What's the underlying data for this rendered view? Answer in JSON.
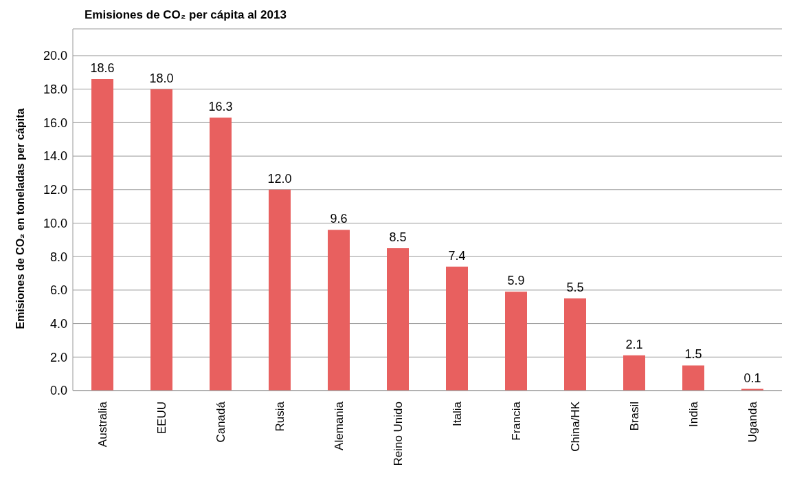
{
  "chart_data": {
    "type": "bar",
    "title": "Emisiones de CO₂ per cápita al 2013",
    "ylabel": "Emisiones de CO₂ en toneladas per cápita",
    "categories": [
      "Australia",
      "EEUU",
      "Canadá",
      "Rusia",
      "Alemania",
      "Reino Unido",
      "Italia",
      "Francia",
      "China/HK",
      "Brasil",
      "India",
      "Uganda"
    ],
    "values": [
      18.6,
      18.0,
      16.3,
      12.0,
      9.6,
      8.5,
      7.4,
      5.9,
      5.5,
      2.1,
      1.5,
      0.1
    ],
    "color": "#e8605f",
    "ylim": [
      0,
      21.6
    ],
    "yticks": [
      {
        "value": 0,
        "label": "0.0"
      },
      {
        "value": 2,
        "label": "2.0"
      },
      {
        "value": 4,
        "label": "4.0"
      },
      {
        "value": 6,
        "label": "6.0"
      },
      {
        "value": 8,
        "label": "8.0"
      },
      {
        "value": 10,
        "label": "10.0"
      },
      {
        "value": 12,
        "label": "12.0"
      },
      {
        "value": 14,
        "label": "14.0"
      },
      {
        "value": 16,
        "label": "16.0"
      },
      {
        "value": 18,
        "label": "18.0"
      },
      {
        "value": 20,
        "label": "20.0"
      }
    ],
    "value_labels": [
      "18.6",
      "18.0",
      "16.3",
      "12.0",
      "9.6",
      "8.5",
      "7.4",
      "5.9",
      "5.5",
      "2.1",
      "1.5",
      "0.1"
    ],
    "grid": "y"
  }
}
